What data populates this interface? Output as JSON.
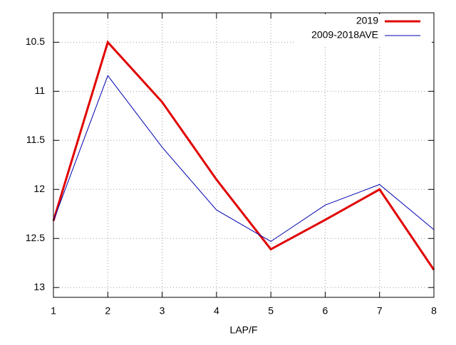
{
  "chart_data": {
    "type": "line",
    "x_label": "LAP/F",
    "x": [
      1,
      2,
      3,
      4,
      5,
      6,
      7,
      8
    ],
    "series": [
      {
        "name": "2019",
        "color": "#e00000",
        "line_width": 3,
        "values": [
          12.32,
          10.5,
          11.11,
          11.9,
          12.61,
          12.31,
          12.0,
          12.82
        ]
      },
      {
        "name": "2009-2018AVE",
        "color": "#0000b0",
        "line_width": 1,
        "values": [
          12.32,
          10.84,
          11.57,
          12.21,
          12.53,
          12.16,
          11.95,
          12.41
        ]
      }
    ],
    "xlim": [
      1,
      8
    ],
    "xticks": [
      1,
      2,
      3,
      4,
      5,
      6,
      7,
      8
    ],
    "ylim": [
      10.2,
      13.1
    ],
    "yticks": [
      10.5,
      11,
      11.5,
      12,
      12.5,
      13
    ],
    "y_reversed": true,
    "grid": true,
    "legend": "top-right"
  }
}
